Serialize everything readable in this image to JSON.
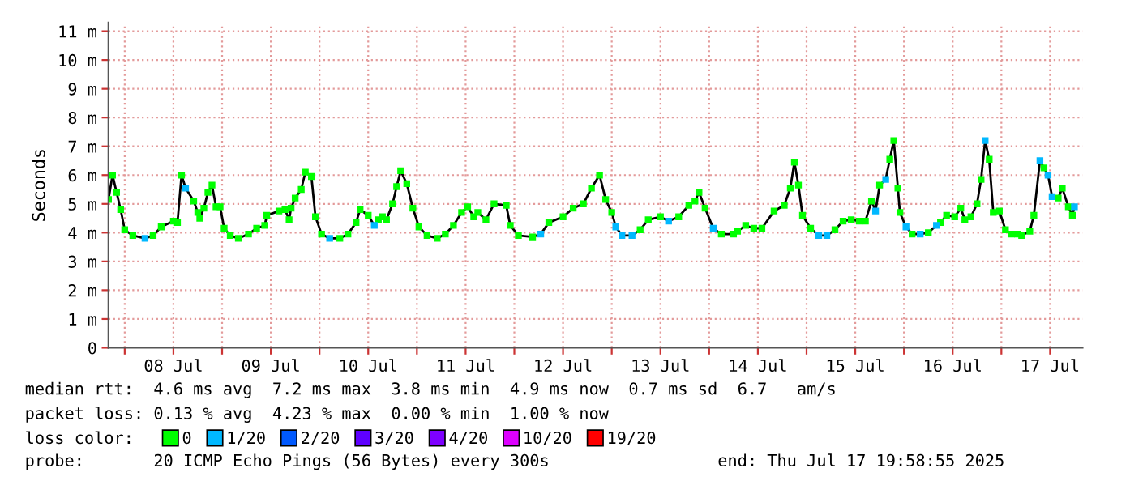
{
  "chart_data": {
    "type": "line",
    "ylabel": "Seconds",
    "xlim": [
      "2025-07-07T20:00",
      "2025-07-17T20:00"
    ],
    "xticks": [
      {
        "value": "2025-07-08T00:00",
        "label": null
      },
      {
        "value": "2025-07-08T12:00",
        "label": "08 Jul"
      },
      {
        "value": "2025-07-09T00:00",
        "label": null
      },
      {
        "value": "2025-07-09T12:00",
        "label": "09 Jul"
      },
      {
        "value": "2025-07-10T00:00",
        "label": null
      },
      {
        "value": "2025-07-10T12:00",
        "label": "10 Jul"
      },
      {
        "value": "2025-07-11T00:00",
        "label": null
      },
      {
        "value": "2025-07-11T12:00",
        "label": "11 Jul"
      },
      {
        "value": "2025-07-12T00:00",
        "label": null
      },
      {
        "value": "2025-07-12T12:00",
        "label": "12 Jul"
      },
      {
        "value": "2025-07-13T00:00",
        "label": null
      },
      {
        "value": "2025-07-13T12:00",
        "label": "13 Jul"
      },
      {
        "value": "2025-07-14T00:00",
        "label": null
      },
      {
        "value": "2025-07-14T12:00",
        "label": "14 Jul"
      },
      {
        "value": "2025-07-15T00:00",
        "label": null
      },
      {
        "value": "2025-07-15T12:00",
        "label": "15 Jul"
      },
      {
        "value": "2025-07-16T00:00",
        "label": null
      },
      {
        "value": "2025-07-16T12:00",
        "label": "16 Jul"
      },
      {
        "value": "2025-07-17T00:00",
        "label": null
      },
      {
        "value": "2025-07-17T12:00",
        "label": "17 Jul"
      }
    ],
    "ylim": [
      0,
      11.3
    ],
    "yticks": [
      0,
      {
        "value": 1,
        "label": "1 m"
      },
      {
        "value": 2,
        "label": "2 m"
      },
      {
        "value": 3,
        "label": "3 m"
      },
      {
        "value": 4,
        "label": "4 m"
      },
      {
        "value": 5,
        "label": "5 m"
      },
      {
        "value": 6,
        "label": "6 m"
      },
      {
        "value": 7,
        "label": "7 m"
      },
      {
        "value": 8,
        "label": "8 m"
      },
      {
        "value": 9,
        "label": "9 m"
      },
      {
        "value": 10,
        "label": "10 m"
      },
      {
        "value": 11,
        "label": "11 m"
      }
    ],
    "grid": true,
    "legend": "bottom",
    "legend_title": "loss color:",
    "x": [
      "2025-07-07T20:00",
      "2025-07-07T21:00",
      "2025-07-07T22:00",
      "2025-07-07T23:00",
      "2025-07-08T00:00",
      "2025-07-08T02:00",
      "2025-07-08T05:00",
      "2025-07-08T07:00",
      "2025-07-08T09:00",
      "2025-07-08T12:00",
      "2025-07-08T13:00",
      "2025-07-08T14:00",
      "2025-07-08T15:00",
      "2025-07-08T17:00",
      "2025-07-08T18:00",
      "2025-07-08T18:30",
      "2025-07-08T19:30",
      "2025-07-08T20:30",
      "2025-07-08T21:30",
      "2025-07-08T22:30",
      "2025-07-08T23:30",
      "2025-07-09T00:30",
      "2025-07-09T02:00",
      "2025-07-09T04:00",
      "2025-07-09T06:30",
      "2025-07-09T08:30",
      "2025-07-09T10:30",
      "2025-07-09T11:00",
      "2025-07-09T14:00",
      "2025-07-09T15:30",
      "2025-07-09T16:30",
      "2025-07-09T17:00",
      "2025-07-09T18:00",
      "2025-07-09T19:30",
      "2025-07-09T20:30",
      "2025-07-09T22:00",
      "2025-07-09T23:00",
      "2025-07-10T00:30",
      "2025-07-10T02:30",
      "2025-07-10T05:00",
      "2025-07-10T07:00",
      "2025-07-10T09:00",
      "2025-07-10T10:00",
      "2025-07-10T12:00",
      "2025-07-10T13:30",
      "2025-07-10T14:30",
      "2025-07-10T15:30",
      "2025-07-10T16:30",
      "2025-07-10T18:00",
      "2025-07-10T19:00",
      "2025-07-10T20:00",
      "2025-07-10T21:30",
      "2025-07-10T23:00",
      "2025-07-11T00:30",
      "2025-07-11T02:30",
      "2025-07-11T05:00",
      "2025-07-11T07:00",
      "2025-07-11T09:00",
      "2025-07-11T11:00",
      "2025-07-11T12:30",
      "2025-07-11T14:00",
      "2025-07-11T15:00",
      "2025-07-11T17:00",
      "2025-07-11T19:00",
      "2025-07-11T22:00",
      "2025-07-11T23:00",
      "2025-07-12T01:00",
      "2025-07-12T04:30",
      "2025-07-12T06:30",
      "2025-07-12T08:30",
      "2025-07-12T12:00",
      "2025-07-12T14:30",
      "2025-07-12T17:00",
      "2025-07-12T19:00",
      "2025-07-12T21:00",
      "2025-07-12T22:30",
      "2025-07-13T00:00",
      "2025-07-13T01:00",
      "2025-07-13T02:30",
      "2025-07-13T05:00",
      "2025-07-13T07:00",
      "2025-07-13T09:00",
      "2025-07-13T12:00",
      "2025-07-13T14:00",
      "2025-07-13T16:30",
      "2025-07-13T19:00",
      "2025-07-13T20:30",
      "2025-07-13T21:30",
      "2025-07-13T23:00",
      "2025-07-14T01:00",
      "2025-07-14T03:00",
      "2025-07-14T06:00",
      "2025-07-14T07:00",
      "2025-07-14T09:00",
      "2025-07-14T11:00",
      "2025-07-14T13:00",
      "2025-07-14T16:00",
      "2025-07-14T18:30",
      "2025-07-14T20:00",
      "2025-07-14T21:00",
      "2025-07-14T22:00",
      "2025-07-14T23:00",
      "2025-07-15T01:00",
      "2025-07-15T03:00",
      "2025-07-15T05:00",
      "2025-07-15T07:00",
      "2025-07-15T09:00",
      "2025-07-15T11:00",
      "2025-07-15T13:00",
      "2025-07-15T14:30",
      "2025-07-15T16:00",
      "2025-07-15T17:00",
      "2025-07-15T18:00",
      "2025-07-15T19:30",
      "2025-07-15T20:30",
      "2025-07-15T21:30",
      "2025-07-15T22:30",
      "2025-07-15T23:00",
      "2025-07-16T00:30",
      "2025-07-16T02:00",
      "2025-07-16T04:00",
      "2025-07-16T06:00",
      "2025-07-16T08:00",
      "2025-07-16T09:00",
      "2025-07-16T10:30",
      "2025-07-16T12:30",
      "2025-07-16T14:00",
      "2025-07-16T15:00",
      "2025-07-16T16:30",
      "2025-07-16T18:00",
      "2025-07-16T19:00",
      "2025-07-16T20:00",
      "2025-07-16T21:00",
      "2025-07-16T22:00",
      "2025-07-16T23:30",
      "2025-07-17T01:00",
      "2025-07-17T02:30",
      "2025-07-17T04:00",
      "2025-07-17T05:00",
      "2025-07-17T07:00",
      "2025-07-17T08:00",
      "2025-07-17T09:30",
      "2025-07-17T10:30",
      "2025-07-17T11:30",
      "2025-07-17T12:30",
      "2025-07-17T14:00",
      "2025-07-17T15:00",
      "2025-07-17T16:30",
      "2025-07-17T17:30",
      "2025-07-17T18:00"
    ],
    "series": [
      {
        "color": "#000000",
        "values": [
          5.15,
          6.0,
          5.4,
          4.8,
          4.1,
          3.9,
          3.8,
          3.9,
          4.2,
          4.4,
          4.35,
          6.0,
          5.55,
          5.1,
          4.7,
          4.5,
          4.85,
          5.4,
          5.65,
          4.9,
          4.9,
          4.15,
          3.9,
          3.8,
          3.95,
          4.15,
          4.25,
          4.6,
          4.75,
          4.8,
          4.45,
          4.85,
          5.2,
          5.5,
          6.1,
          5.95,
          4.55,
          3.95,
          3.8,
          3.8,
          3.95,
          4.35,
          4.8,
          4.6,
          4.25,
          4.45,
          4.55,
          4.45,
          5.0,
          5.6,
          6.15,
          5.7,
          4.85,
          4.2,
          3.9,
          3.8,
          3.95,
          4.25,
          4.7,
          4.9,
          4.55,
          4.7,
          4.45,
          5.0,
          4.95,
          4.25,
          3.9,
          3.85,
          3.95,
          4.35,
          4.55,
          4.85,
          5.0,
          5.55,
          6.0,
          5.15,
          4.7,
          4.2,
          3.9,
          3.9,
          4.1,
          4.45,
          4.55,
          4.4,
          4.55,
          4.95,
          5.1,
          5.4,
          4.85,
          4.15,
          3.95,
          3.95,
          4.05,
          4.25,
          4.15,
          4.15,
          4.75,
          4.95,
          5.55,
          6.45,
          5.65,
          4.6,
          4.15,
          3.9,
          3.9,
          4.1,
          4.4,
          4.45,
          4.4,
          4.4,
          5.1,
          4.75,
          5.65,
          5.85,
          6.55,
          7.2,
          5.55,
          4.7,
          4.2,
          3.95,
          3.95,
          4.0,
          4.25,
          4.35,
          4.6,
          4.55,
          4.85,
          4.45,
          4.55,
          5.0,
          5.85,
          7.2,
          6.55,
          4.7,
          4.75,
          4.1,
          3.95,
          3.95,
          3.9,
          4.05,
          4.6,
          6.5,
          6.25,
          6.0,
          5.25,
          5.2,
          5.55,
          4.9,
          4.6,
          4.9
        ]
      },
      {
        "type": "scatter",
        "name": "0",
        "color": "#00ff00",
        "x": [
          "2025-07-07T20:00",
          "2025-07-07T21:00",
          "2025-07-07T22:00",
          "2025-07-07T23:00",
          "2025-07-08T00:00",
          "2025-07-08T02:00",
          "2025-07-08T07:00",
          "2025-07-08T09:00",
          "2025-07-08T12:00",
          "2025-07-08T13:00",
          "2025-07-08T14:00",
          "2025-07-08T17:00",
          "2025-07-08T18:00",
          "2025-07-08T18:30",
          "2025-07-08T19:30",
          "2025-07-08T20:30",
          "2025-07-08T21:30",
          "2025-07-08T22:30",
          "2025-07-08T23:30",
          "2025-07-09T00:30",
          "2025-07-09T02:00",
          "2025-07-09T04:00",
          "2025-07-09T06:30",
          "2025-07-09T08:30",
          "2025-07-09T10:30",
          "2025-07-09T11:00",
          "2025-07-09T14:00",
          "2025-07-09T15:30",
          "2025-07-09T16:30",
          "2025-07-09T17:00",
          "2025-07-09T18:00",
          "2025-07-09T19:30",
          "2025-07-09T20:30",
          "2025-07-09T22:00",
          "2025-07-09T23:00",
          "2025-07-10T00:30",
          "2025-07-10T05:00",
          "2025-07-10T07:00",
          "2025-07-10T09:00",
          "2025-07-10T10:00",
          "2025-07-10T12:00",
          "2025-07-10T14:30",
          "2025-07-10T15:30",
          "2025-07-10T16:30",
          "2025-07-10T18:00",
          "2025-07-10T19:00",
          "2025-07-10T20:00",
          "2025-07-10T21:30",
          "2025-07-10T23:00",
          "2025-07-11T00:30",
          "2025-07-11T02:30",
          "2025-07-11T05:00",
          "2025-07-11T07:00",
          "2025-07-11T09:00",
          "2025-07-11T11:00",
          "2025-07-11T12:30",
          "2025-07-11T14:00",
          "2025-07-11T15:00",
          "2025-07-11T17:00",
          "2025-07-11T19:00",
          "2025-07-11T22:00",
          "2025-07-11T23:00",
          "2025-07-12T01:00",
          "2025-07-12T04:30",
          "2025-07-12T08:30",
          "2025-07-12T12:00",
          "2025-07-12T14:30",
          "2025-07-12T17:00",
          "2025-07-12T19:00",
          "2025-07-12T21:00",
          "2025-07-12T22:30",
          "2025-07-13T00:00",
          "2025-07-13T07:00",
          "2025-07-13T09:00",
          "2025-07-13T12:00",
          "2025-07-13T16:30",
          "2025-07-13T19:00",
          "2025-07-13T20:30",
          "2025-07-13T21:30",
          "2025-07-13T23:00",
          "2025-07-14T03:00",
          "2025-07-14T06:00",
          "2025-07-14T07:00",
          "2025-07-14T09:00",
          "2025-07-14T11:00",
          "2025-07-14T13:00",
          "2025-07-14T16:00",
          "2025-07-14T18:30",
          "2025-07-14T20:00",
          "2025-07-14T21:00",
          "2025-07-14T22:00",
          "2025-07-14T23:00",
          "2025-07-15T01:00",
          "2025-07-15T07:00",
          "2025-07-15T09:00",
          "2025-07-15T11:00",
          "2025-07-15T13:00",
          "2025-07-15T14:30",
          "2025-07-15T16:00",
          "2025-07-15T18:00",
          "2025-07-15T20:30",
          "2025-07-15T21:30",
          "2025-07-15T22:30",
          "2025-07-15T23:00",
          "2025-07-16T02:00",
          "2025-07-16T06:00",
          "2025-07-16T09:00",
          "2025-07-16T10:30",
          "2025-07-16T12:30",
          "2025-07-16T14:00",
          "2025-07-16T15:00",
          "2025-07-16T16:30",
          "2025-07-16T18:00",
          "2025-07-16T19:00",
          "2025-07-16T21:00",
          "2025-07-16T22:00",
          "2025-07-16T23:30",
          "2025-07-17T01:00",
          "2025-07-17T02:30",
          "2025-07-17T04:00",
          "2025-07-17T05:00",
          "2025-07-17T07:00",
          "2025-07-17T08:00",
          "2025-07-17T10:30",
          "2025-07-17T14:00",
          "2025-07-17T15:00",
          "2025-07-17T16:30",
          "2025-07-17T17:30"
        ],
        "values": [
          5.15,
          6.0,
          5.4,
          4.8,
          4.1,
          3.9,
          3.9,
          4.2,
          4.4,
          4.35,
          6.0,
          5.1,
          4.7,
          4.5,
          4.85,
          5.4,
          5.65,
          4.9,
          4.9,
          4.15,
          3.9,
          3.8,
          3.95,
          4.15,
          4.25,
          4.6,
          4.75,
          4.8,
          4.45,
          4.85,
          5.2,
          5.5,
          6.1,
          5.95,
          4.55,
          3.95,
          3.8,
          3.95,
          4.35,
          4.8,
          4.6,
          4.45,
          4.55,
          4.45,
          5.0,
          5.6,
          6.15,
          5.7,
          4.85,
          4.2,
          3.9,
          3.8,
          3.95,
          4.25,
          4.7,
          4.9,
          4.55,
          4.7,
          4.45,
          5.0,
          4.95,
          4.25,
          3.9,
          3.85,
          4.35,
          4.55,
          4.85,
          5.0,
          5.55,
          6.0,
          5.15,
          4.7,
          4.1,
          4.45,
          4.55,
          4.55,
          4.95,
          5.1,
          5.4,
          4.85,
          3.95,
          3.95,
          4.05,
          4.25,
          4.15,
          4.15,
          4.75,
          4.95,
          5.55,
          6.45,
          5.65,
          4.6,
          4.15,
          4.1,
          4.4,
          4.45,
          4.4,
          4.4,
          5.1,
          5.65,
          6.55,
          7.2,
          5.55,
          4.7,
          3.95,
          4.0,
          4.35,
          4.6,
          4.55,
          4.85,
          4.45,
          4.55,
          5.0,
          5.85,
          6.55,
          4.7,
          4.75,
          4.1,
          3.95,
          3.95,
          3.9,
          4.05,
          4.6,
          6.25,
          5.2,
          5.55,
          4.9,
          4.6
        ]
      },
      {
        "type": "scatter",
        "name": "1/20",
        "color": "#00b8ff",
        "x": [
          "2025-07-08T05:00",
          "2025-07-08T15:00",
          "2025-07-10T02:30",
          "2025-07-10T13:30",
          "2025-07-12T06:30",
          "2025-07-13T01:00",
          "2025-07-13T02:30",
          "2025-07-13T05:00",
          "2025-07-13T14:00",
          "2025-07-14T01:00",
          "2025-07-15T03:00",
          "2025-07-15T05:00",
          "2025-07-15T17:00",
          "2025-07-15T19:30",
          "2025-07-16T00:30",
          "2025-07-16T04:00",
          "2025-07-16T08:00",
          "2025-07-16T20:00",
          "2025-07-17T09:30",
          "2025-07-17T11:30",
          "2025-07-17T12:30",
          "2025-07-17T18:00"
        ],
        "values": [
          3.8,
          5.55,
          3.8,
          4.25,
          3.95,
          4.2,
          3.9,
          3.9,
          4.4,
          4.15,
          3.9,
          3.9,
          4.75,
          5.85,
          4.2,
          3.95,
          4.25,
          7.2,
          6.5,
          6.0,
          5.25,
          4.9
        ]
      },
      {
        "type": "scatter",
        "name": "2/20",
        "color": "#0059ff",
        "values": [
          null,
          null,
          null,
          null,
          null,
          null,
          null,
          null,
          null,
          null,
          null,
          null,
          null,
          null,
          null,
          null,
          null,
          null,
          null,
          null,
          null,
          null,
          null,
          null,
          null,
          null,
          null,
          null,
          null,
          null,
          null,
          null,
          null,
          null,
          null,
          null,
          null,
          null,
          null,
          null,
          null,
          null,
          null,
          null,
          null,
          null,
          null,
          null,
          null,
          null,
          null,
          null,
          null,
          null,
          null,
          null,
          null,
          null,
          null,
          null,
          null,
          null,
          null,
          null,
          null,
          null,
          null,
          null,
          null,
          null,
          null,
          null,
          null,
          null,
          null,
          null,
          null,
          null,
          null,
          null,
          null,
          null,
          null,
          null,
          null,
          null,
          null,
          null,
          null,
          null,
          null,
          null,
          null,
          null,
          null,
          null,
          null,
          null,
          null,
          null,
          null,
          null,
          null,
          null,
          null,
          null,
          null,
          null,
          null,
          null,
          null,
          null,
          null,
          null,
          null,
          null,
          null,
          null,
          null,
          null,
          null,
          null,
          null,
          null,
          null,
          null,
          null,
          null,
          null,
          null,
          null,
          null,
          null,
          null,
          null,
          null,
          null,
          null,
          null,
          null,
          null,
          null,
          null,
          null,
          null,
          null,
          null,
          null,
          null,
          null
        ]
      },
      {
        "type": "scatter",
        "name": "3/20",
        "color": "#5e00ff",
        "values": [
          null,
          null,
          null,
          null,
          null,
          null,
          null,
          null,
          null,
          null,
          null,
          null,
          null,
          null,
          null,
          null,
          null,
          null,
          null,
          null,
          null,
          null,
          null,
          null,
          null,
          null,
          null,
          null,
          null,
          null,
          null,
          null,
          null,
          null,
          null,
          null,
          null,
          null,
          null,
          null,
          null,
          null,
          null,
          null,
          null,
          null,
          null,
          null,
          null,
          null,
          null,
          null,
          null,
          null,
          null,
          null,
          null,
          null,
          null,
          null,
          null,
          null,
          null,
          null,
          null,
          null,
          null,
          null,
          null,
          null,
          null,
          null,
          null,
          null,
          null,
          null,
          null,
          null,
          null,
          null,
          null,
          null,
          null,
          null,
          null,
          null,
          null,
          null,
          null,
          null,
          null,
          null,
          null,
          null,
          null,
          null,
          null,
          null,
          null,
          null,
          null,
          null,
          null,
          null,
          null,
          null,
          null,
          null,
          null,
          null,
          null,
          null,
          null,
          null,
          null,
          null,
          null,
          null,
          null,
          null,
          null,
          null,
          null,
          null,
          null,
          null,
          null,
          null,
          null,
          null,
          null,
          null,
          null,
          null,
          null,
          null,
          null,
          null,
          null,
          null,
          null,
          null,
          null,
          null,
          null,
          null,
          null,
          null,
          null,
          null
        ]
      },
      {
        "type": "scatter",
        "name": "4/20",
        "color": "#7e00ff",
        "values": [
          null,
          null,
          null,
          null,
          null,
          null,
          null,
          null,
          null,
          null,
          null,
          null,
          null,
          null,
          null,
          null,
          null,
          null,
          null,
          null,
          null,
          null,
          null,
          null,
          null,
          null,
          null,
          null,
          null,
          null,
          null,
          null,
          null,
          null,
          null,
          null,
          null,
          null,
          null,
          null,
          null,
          null,
          null,
          null,
          null,
          null,
          null,
          null,
          null,
          null,
          null,
          null,
          null,
          null,
          null,
          null,
          null,
          null,
          null,
          null,
          null,
          null,
          null,
          null,
          null,
          null,
          null,
          null,
          null,
          null,
          null,
          null,
          null,
          null,
          null,
          null,
          null,
          null,
          null,
          null,
          null,
          null,
          null,
          null,
          null,
          null,
          null,
          null,
          null,
          null,
          null,
          null,
          null,
          null,
          null,
          null,
          null,
          null,
          null,
          null,
          null,
          null,
          null,
          null,
          null,
          null,
          null,
          null,
          null,
          null,
          null,
          null,
          null,
          null,
          null,
          null,
          null,
          null,
          null,
          null,
          null,
          null,
          null,
          null,
          null,
          null,
          null,
          null,
          null,
          null,
          null,
          null,
          null,
          null,
          null,
          null,
          null,
          null,
          null,
          null,
          null,
          null,
          null,
          null,
          null,
          null,
          null,
          null,
          null,
          null
        ]
      },
      {
        "type": "scatter",
        "name": "10/20",
        "color": "#dd00ff",
        "values": [
          null,
          null,
          null,
          null,
          null,
          null,
          null,
          null,
          null,
          null,
          null,
          null,
          null,
          null,
          null,
          null,
          null,
          null,
          null,
          null,
          null,
          null,
          null,
          null,
          null,
          null,
          null,
          null,
          null,
          null,
          null,
          null,
          null,
          null,
          null,
          null,
          null,
          null,
          null,
          null,
          null,
          null,
          null,
          null,
          null,
          null,
          null,
          null,
          null,
          null,
          null,
          null,
          null,
          null,
          null,
          null,
          null,
          null,
          null,
          null,
          null,
          null,
          null,
          null,
          null,
          null,
          null,
          null,
          null,
          null,
          null,
          null,
          null,
          null,
          null,
          null,
          null,
          null,
          null,
          null,
          null,
          null,
          null,
          null,
          null,
          null,
          null,
          null,
          null,
          null,
          null,
          null,
          null,
          null,
          null,
          null,
          null,
          null,
          null,
          null,
          null,
          null,
          null,
          null,
          null,
          null,
          null,
          null,
          null,
          null,
          null,
          null,
          null,
          null,
          null,
          null,
          null,
          null,
          null,
          null,
          null,
          null,
          null,
          null,
          null,
          null,
          null,
          null,
          null,
          null,
          null,
          null,
          null,
          null,
          null,
          null,
          null,
          null,
          null,
          null,
          null,
          null,
          null,
          null,
          null,
          null,
          null,
          null,
          null,
          null
        ]
      },
      {
        "type": "scatter",
        "name": "19/20",
        "color": "#ff0000",
        "values": [
          null,
          null,
          null,
          null,
          null,
          null,
          null,
          null,
          null,
          null,
          null,
          null,
          null,
          null,
          null,
          null,
          null,
          null,
          null,
          null,
          null,
          null,
          null,
          null,
          null,
          null,
          null,
          null,
          null,
          null,
          null,
          null,
          null,
          null,
          null,
          null,
          null,
          null,
          null,
          null,
          null,
          null,
          null,
          null,
          null,
          null,
          null,
          null,
          null,
          null,
          null,
          null,
          null,
          null,
          null,
          null,
          null,
          null,
          null,
          null,
          null,
          null,
          null,
          null,
          null,
          null,
          null,
          null,
          null,
          null,
          null,
          null,
          null,
          null,
          null,
          null,
          null,
          null,
          null,
          null,
          null,
          null,
          null,
          null,
          null,
          null,
          null,
          null,
          null,
          null,
          null,
          null,
          null,
          null,
          null,
          null,
          null,
          null,
          null,
          null,
          null,
          null,
          null,
          null,
          null,
          null,
          null,
          null,
          null,
          null,
          null,
          null,
          null,
          null,
          null,
          null,
          null,
          null,
          null,
          null,
          null,
          null,
          null,
          null,
          null,
          null,
          null,
          null,
          null,
          null,
          null,
          null,
          null,
          null,
          null,
          null,
          null,
          null,
          null,
          null,
          null,
          null,
          null,
          null,
          null,
          null,
          null,
          null,
          null,
          null
        ]
      }
    ],
    "annotations": [
      "median rtt:  4.6 ms avg  7.2 ms max  3.8 ms min  4.9 ms now  0.7 ms sd  6.7   am/s",
      "packet loss: 0.13 % avg  4.23 % max  0.00 % min  1.00 % now",
      "probe:       20 ICMP Echo Pings (56 Bytes) every 300s                 end: Thu Jul 17 19:58:55 2025"
    ]
  }
}
